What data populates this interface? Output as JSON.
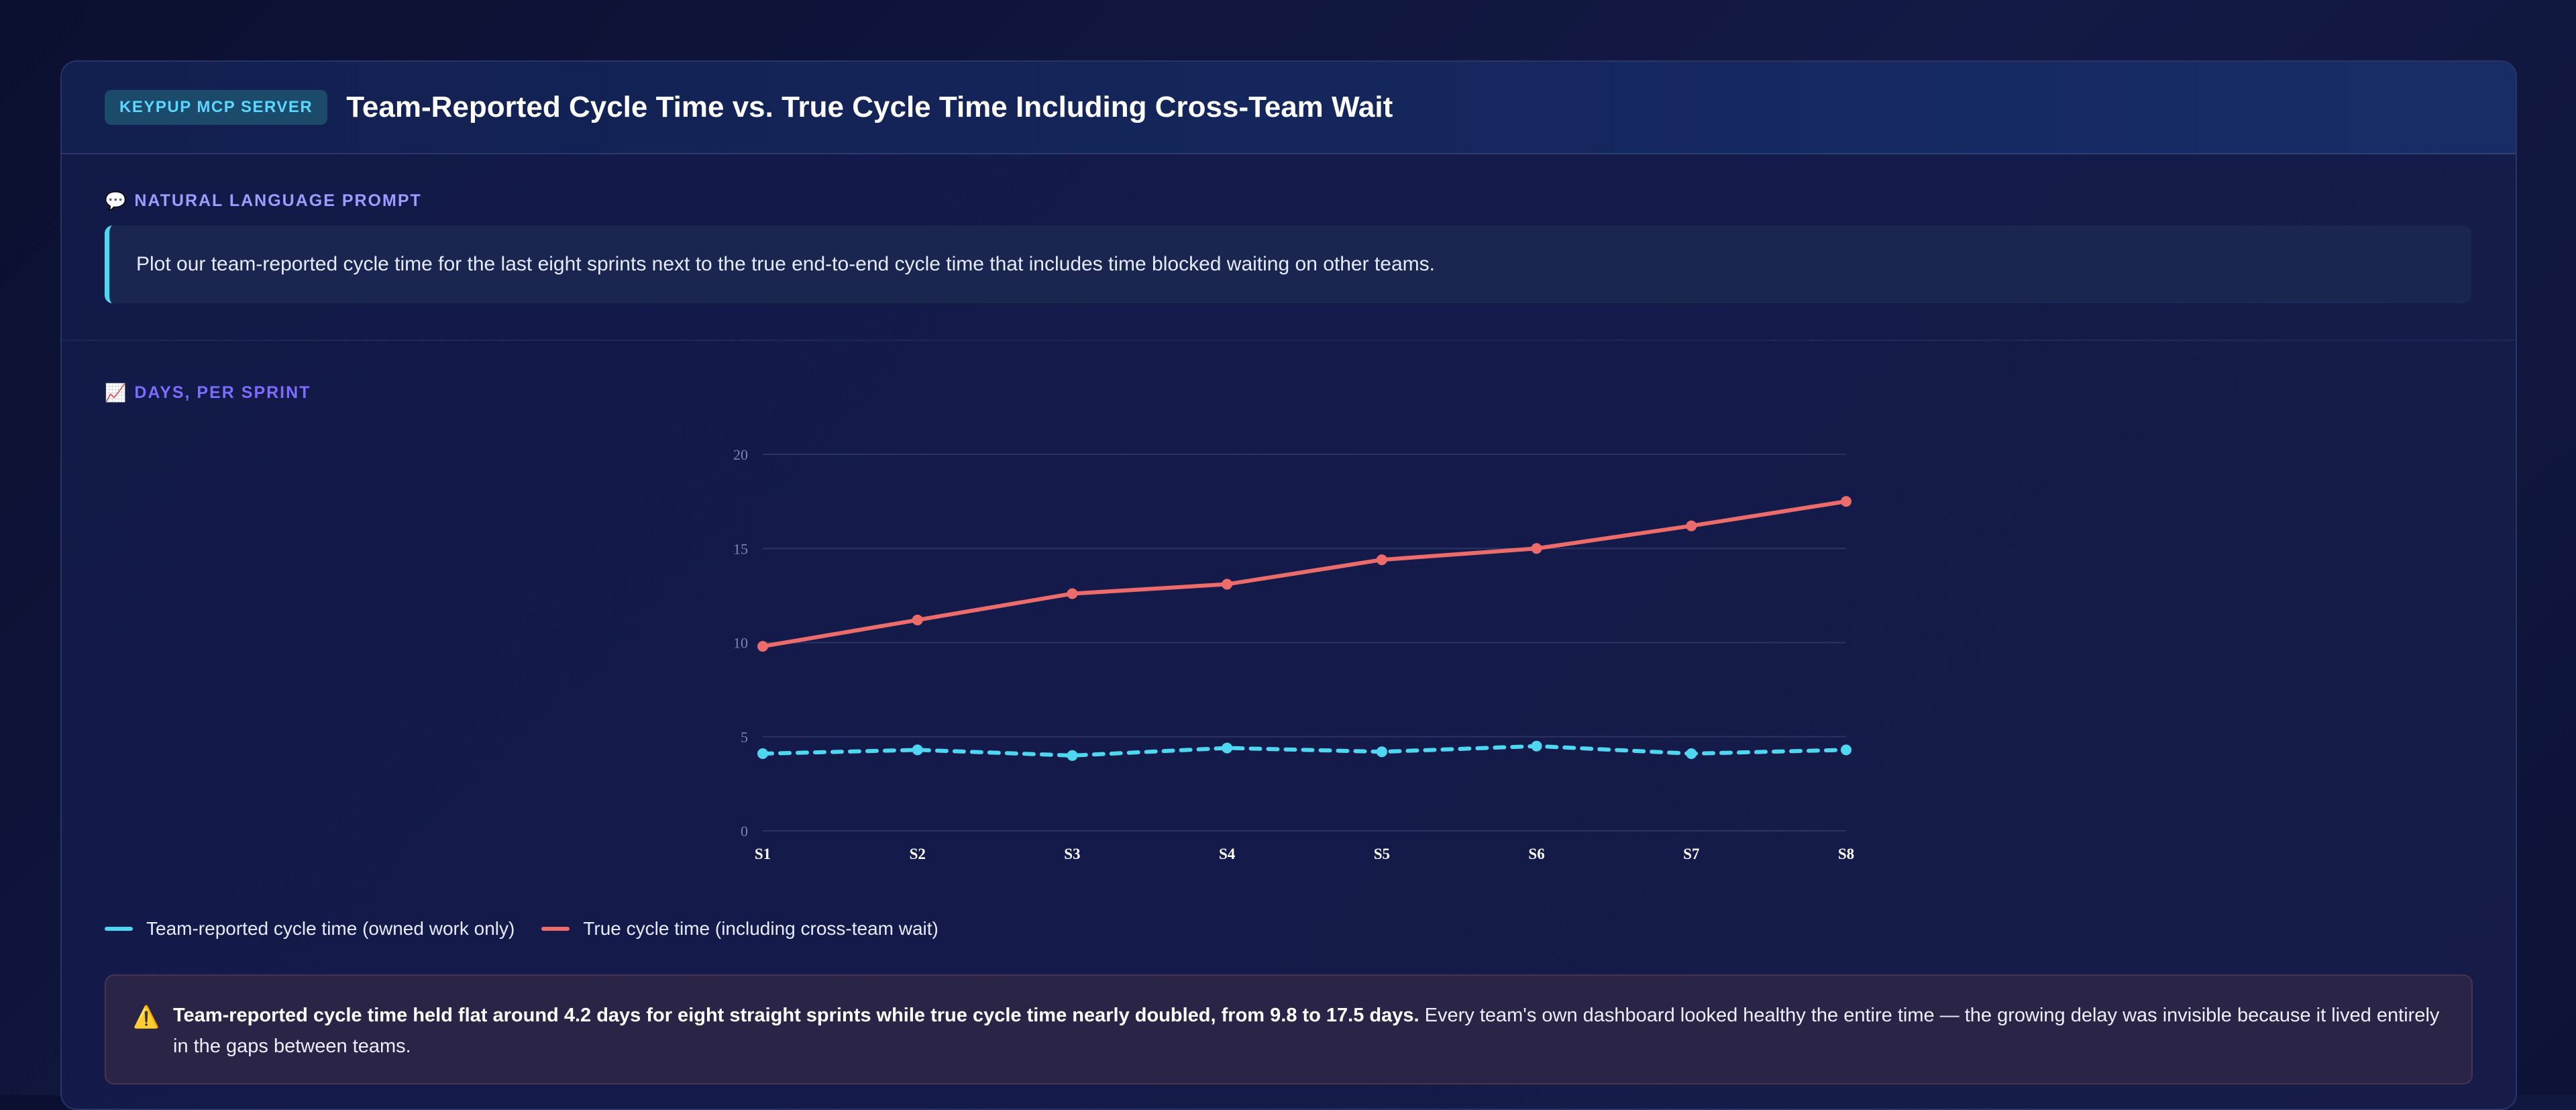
{
  "header": {
    "badge": "KEYPUP MCP SERVER",
    "title": "Team-Reported Cycle Time vs. True Cycle Time Including Cross-Team Wait"
  },
  "prompt": {
    "label": "NATURAL LANGUAGE PROMPT",
    "icon": "speech-bubble-icon",
    "emoji": "💬",
    "text": "Plot our team-reported cycle time for the last eight sprints next to the true end-to-end cycle time that includes time blocked waiting on other teams."
  },
  "chart_section": {
    "label": "DAYS, PER SPRINT",
    "icon": "chart-increasing-icon",
    "emoji": "📈"
  },
  "colors": {
    "reported": "#4fd6f0",
    "true": "#ec6b6b",
    "grid": "#2a3463",
    "tick": "#7d86b0",
    "xtick": "#ffffff"
  },
  "chart_data": {
    "type": "line",
    "categories": [
      "S1",
      "S2",
      "S3",
      "S4",
      "S5",
      "S6",
      "S7",
      "S8"
    ],
    "ylim": [
      0,
      20
    ],
    "yticks": [
      0,
      5,
      10,
      15,
      20
    ],
    "grid": true,
    "xlabel": "",
    "ylabel": "",
    "legend_position": "bottom-left",
    "series": [
      {
        "name": "Team-reported cycle time (owned work only)",
        "values": [
          4.1,
          4.3,
          4.0,
          4.4,
          4.2,
          4.5,
          4.1,
          4.3
        ],
        "style": "dashed",
        "color": "#4fd6f0"
      },
      {
        "name": "True cycle time (including cross-team wait)",
        "values": [
          9.8,
          11.2,
          12.6,
          13.1,
          14.4,
          15.0,
          16.2,
          17.5
        ],
        "style": "solid",
        "color": "#ec6b6b"
      }
    ]
  },
  "callout": {
    "icon": "warning-icon",
    "emoji": "⚠️",
    "bold": "Team-reported cycle time held flat around 4.2 days for eight straight sprints while true cycle time nearly doubled, from 9.8 to 17.5 days.",
    "text": " Every team's own dashboard looked healthy the entire time — the growing delay was invisible because it lived entirely in the gaps between teams."
  }
}
